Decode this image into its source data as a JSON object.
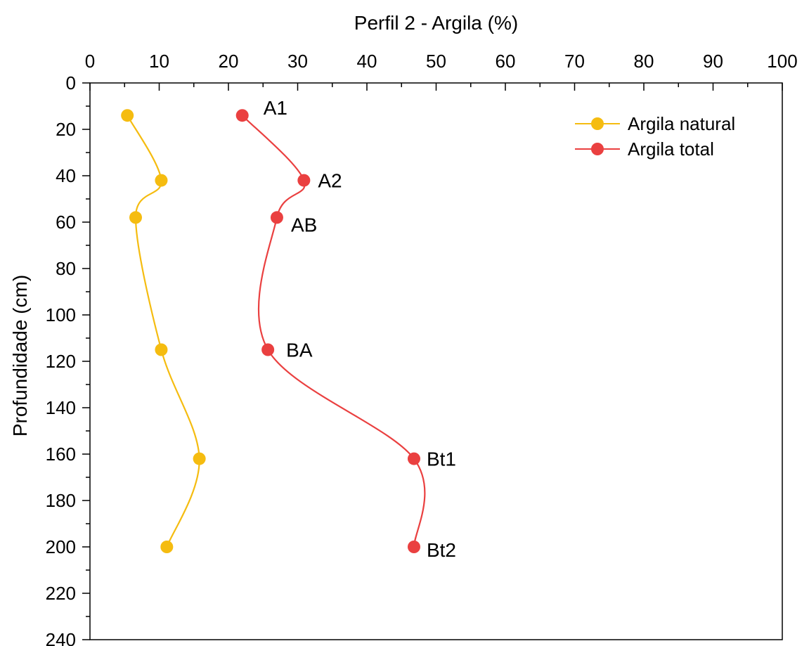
{
  "chart_data": {
    "type": "line",
    "title": "",
    "xlabel": "Perfil 2 - Argila (%)",
    "ylabel": "Profundidade (cm)",
    "xlim": [
      0,
      100
    ],
    "ylim": [
      0,
      240
    ],
    "y_inverted": true,
    "x_axis_position": "top",
    "x_ticks": [
      0,
      10,
      20,
      30,
      40,
      50,
      60,
      70,
      80,
      90,
      100
    ],
    "x_tick_labels": [
      "0",
      "10",
      "20",
      "30",
      "40",
      "50",
      "60",
      "70",
      "80",
      "90",
      "100"
    ],
    "y_ticks": [
      0,
      20,
      40,
      60,
      80,
      100,
      120,
      140,
      160,
      180,
      200,
      220,
      240
    ],
    "y_tick_labels": [
      "0",
      "20",
      "40",
      "60",
      "80",
      "100",
      "120",
      "140",
      "160",
      "180",
      "200",
      "220",
      "240"
    ],
    "grid": false,
    "legend_position": "top-right",
    "series": [
      {
        "name": "Argila natural",
        "color": "#f5bc10",
        "x": [
          5.4,
          10.3,
          6.6,
          10.3,
          15.8,
          11.1
        ],
        "y": [
          14,
          42,
          58,
          115,
          162,
          200
        ],
        "labels": []
      },
      {
        "name": "Argila total",
        "color": "#ea4040",
        "x": [
          22.0,
          30.9,
          27.0,
          25.7,
          46.8,
          46.8
        ],
        "y": [
          14,
          42,
          58,
          115,
          162,
          200
        ],
        "labels": [
          "A1",
          "A2",
          "AB",
          "BA",
          "Bt1",
          "Bt2"
        ]
      }
    ]
  }
}
